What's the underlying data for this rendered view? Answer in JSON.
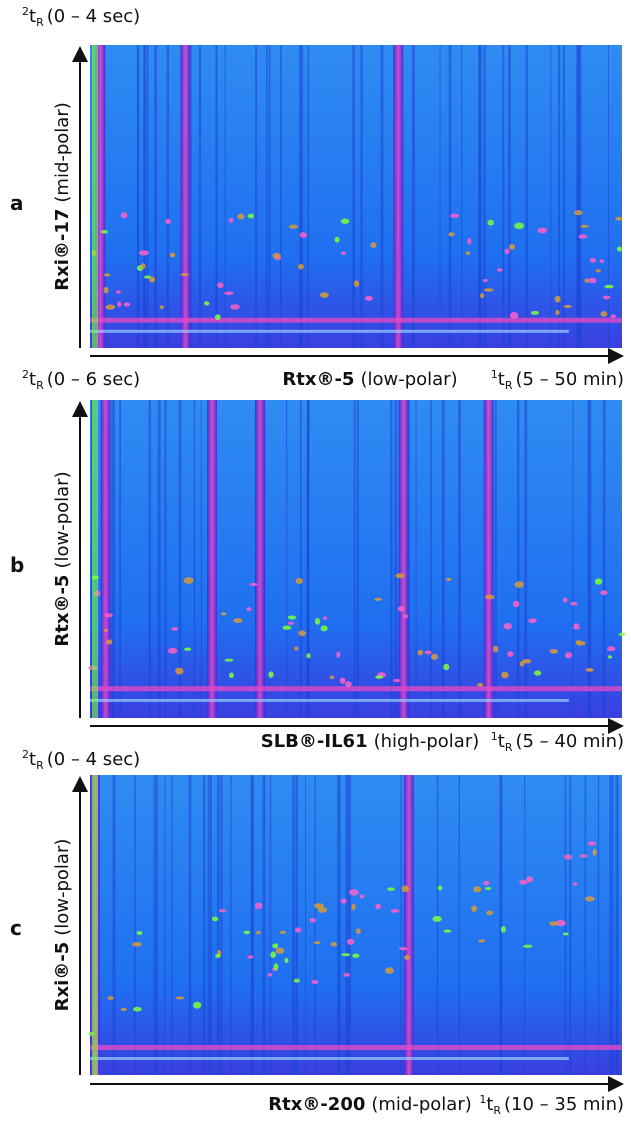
{
  "panels": [
    {
      "letter": "a",
      "y_top": {
        "sup": "2",
        "base": "t",
        "sub": "R",
        "range": "(0 – 4 sec)"
      },
      "y_title": {
        "bold": "Rxi®-17",
        "rest": "(mid-polar)"
      },
      "x_title": {
        "bold": "Rtx®-5",
        "rest": "(low-polar)"
      },
      "x_end": {
        "sup": "1",
        "base": "t",
        "sub": "R",
        "range": "(5 – 50 min)"
      }
    },
    {
      "letter": "b",
      "y_top": {
        "sup": "2",
        "base": "t",
        "sub": "R",
        "range": "(0 – 6 sec)"
      },
      "y_title": {
        "bold": "Rtx®-5",
        "rest": "(low-polar)"
      },
      "x_title": {
        "bold": "SLB®-IL61",
        "rest": "(high-polar)"
      },
      "x_end": {
        "sup": "1",
        "base": "t",
        "sub": "R",
        "range": "(5 – 40 min)"
      }
    },
    {
      "letter": "c",
      "y_top": {
        "sup": "2",
        "base": "t",
        "sub": "R",
        "range": "(0 – 4 sec)"
      },
      "y_title": {
        "bold": "Rxi®-5",
        "rest": "(low-polar)"
      },
      "x_title": {
        "bold": "Rtx®-200",
        "rest": "(mid-polar)"
      },
      "x_end": {
        "sup": "1",
        "base": "t",
        "sub": "R",
        "range": "(10 – 35 min)"
      }
    }
  ]
}
